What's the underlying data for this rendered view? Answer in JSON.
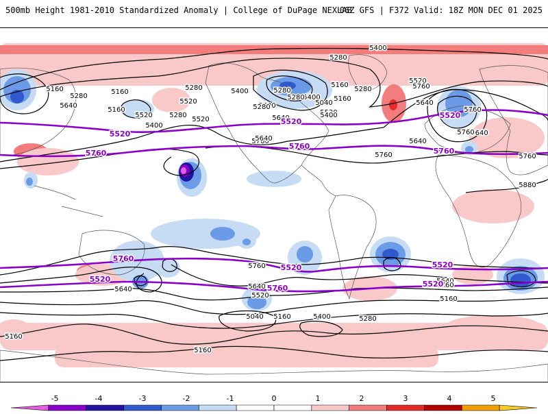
{
  "header": {
    "title_left": "500mb Height 1981-2010 Standardized Anomaly | College of DuPage NEXLAB",
    "title_right": "06Z GFS | F372 Valid: 18Z MON DEC 01 2025"
  },
  "colors": {
    "pos1": "#f9c9c9",
    "pos2": "#f37c7c",
    "pos3": "#e32b2b",
    "pos4": "#b30000",
    "pos5": "#f0a000",
    "pos6": "#f7cc2a",
    "neg1": "#c6dcf5",
    "neg2": "#6b9be6",
    "neg3": "#2f59cc",
    "neg4": "#2214a0",
    "neg5": "#8a00c8",
    "neg6": "#e060e0",
    "contour": "#000000",
    "highlight_contour": "#8a00c8"
  },
  "colorbar": {
    "ticks": [
      "-5",
      "-4",
      "-3",
      "-2",
      "-1",
      "0",
      "1",
      "2",
      "3",
      "4",
      "5"
    ]
  },
  "contour_labels": {
    "black": [
      "5400",
      "5280",
      "5160",
      "5160",
      "5280",
      "5400",
      "5280",
      "5160",
      "5400",
      "5280",
      "5160",
      "5040",
      "5280",
      "5400",
      "5520",
      "5640",
      "5520",
      "5280",
      "5400",
      "5520",
      "5640",
      "5760",
      "5760",
      "5640",
      "5760",
      "5760",
      "5880",
      "5760",
      "5640",
      "5760",
      "5640",
      "5520",
      "5280",
      "5160",
      "5400",
      "5280",
      "5520",
      "5640",
      "5040",
      "5160",
      "5400",
      "5280",
      "5640",
      "5520",
      "5640",
      "5760",
      "5160",
      "5160",
      "5160",
      "5640",
      "5760"
    ],
    "purple": [
      "5520",
      "5520",
      "5520",
      "5760",
      "5760",
      "5760",
      "5760",
      "5520",
      "5520",
      "5520",
      "5760",
      "5520"
    ]
  }
}
